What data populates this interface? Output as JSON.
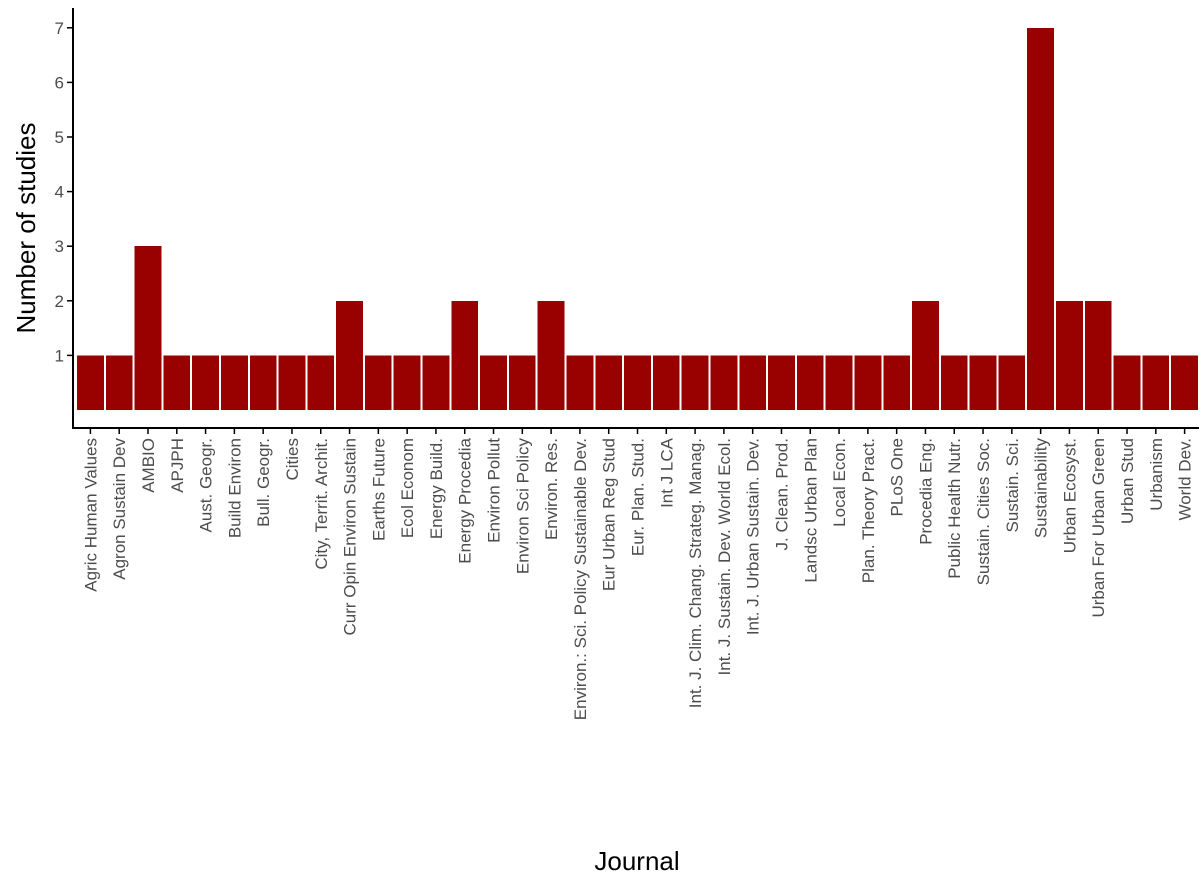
{
  "chart_data": {
    "type": "bar",
    "xlabel": "Journal",
    "ylabel": "Number of studies",
    "ylim": [
      0,
      7
    ],
    "yticks": [
      1,
      2,
      3,
      4,
      5,
      6,
      7
    ],
    "grid": false,
    "bar_color": "#990000",
    "categories": [
      "Agric Human Values",
      "Agron Sustain Dev",
      "AMBIO",
      "APJPH",
      "Aust. Geogr.",
      "Build Environ",
      "Bull. Geogr.",
      "Cities",
      "City, Territ. Archit.",
      "Curr Opin Environ Sustain",
      "Earths Future",
      "Ecol Econom",
      "Energy Build.",
      "Energy Procedia",
      "Environ Pollut",
      "Environ Sci Policy",
      "Environ. Res.",
      "Environ.: Sci. Policy Sustainable Dev.",
      "Eur Urban Reg Stud",
      "Eur. Plan. Stud.",
      "Int J LCA",
      "Int. J. Clim. Chang. Strateg. Manag.",
      "Int. J. Sustain. Dev. World Ecol.",
      "Int. J. Urban Sustain. Dev.",
      "J. Clean. Prod.",
      "Landsc Urban Plan",
      "Local Econ.",
      "Plan. Theory Pract.",
      "PLoS One",
      "Procedia Eng.",
      "Public Health Nutr.",
      "Sustain. Cities Soc.",
      "Sustain. Sci.",
      "Sustainability",
      "Urban Ecosyst.",
      "Urban For Urban Green",
      "Urban Stud",
      "Urbanism",
      "World Dev."
    ],
    "values": [
      1,
      1,
      3,
      1,
      1,
      1,
      1,
      1,
      1,
      2,
      1,
      1,
      1,
      2,
      1,
      1,
      2,
      1,
      1,
      1,
      1,
      1,
      1,
      1,
      1,
      1,
      1,
      1,
      1,
      2,
      1,
      1,
      1,
      7,
      2,
      2,
      1,
      1,
      1
    ]
  }
}
